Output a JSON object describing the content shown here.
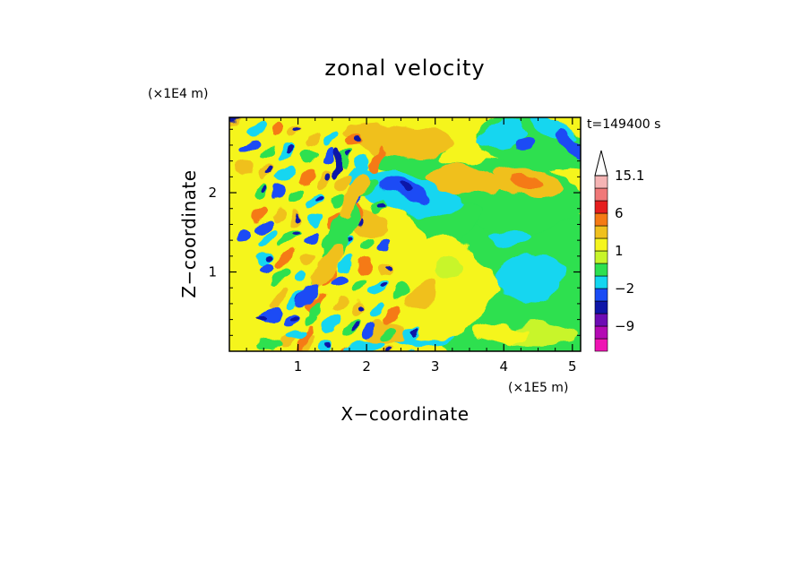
{
  "chart_data": {
    "type": "heatmap",
    "title": "zonal velocity",
    "xlabel": "X−coordinate",
    "ylabel": "Z−coordinate",
    "x_scale_label": "(×1E5 m)",
    "y_scale_label": "(×1E4 m)",
    "time_label": "t=149400 s",
    "xlim": [
      0,
      5.12
    ],
    "ylim": [
      0,
      2.95
    ],
    "x_ticks": [
      1,
      2,
      3,
      4,
      5
    ],
    "y_ticks": [
      1,
      2
    ],
    "colorbar": {
      "levels": [
        -15,
        -12,
        -9,
        -6,
        -3,
        -2,
        -1,
        0,
        1,
        2,
        3,
        6,
        9,
        12,
        15.1
      ],
      "colors": [
        "#ef14b3",
        "#b40ab4",
        "#6e0cb4",
        "#0f16a8",
        "#1a4cf5",
        "#14d6f0",
        "#2de050",
        "#c8f52a",
        "#f5f51e",
        "#f0c01e",
        "#f57a14",
        "#e61e1e",
        "#f07878",
        "#f5b4b4"
      ],
      "labels": [
        "15.1",
        "6",
        "1",
        "−2",
        "−9"
      ],
      "extend": "max"
    }
  }
}
